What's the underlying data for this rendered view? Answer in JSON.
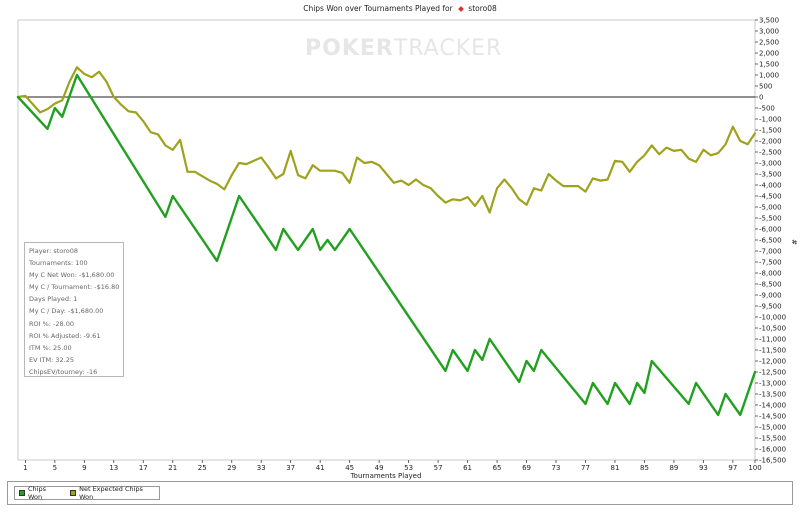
{
  "chart_data": {
    "type": "line",
    "title_prefix": "Chips Won over Tournaments Played for",
    "player_name": "storo08",
    "watermark_left": "POKER",
    "watermark_right": "TRACKER",
    "xlabel": "Tournaments Played",
    "ylabel": "#",
    "xlim": [
      0,
      100
    ],
    "ylim": [
      -16500,
      3500
    ],
    "x_ticks": [
      1,
      5,
      9,
      13,
      17,
      21,
      25,
      29,
      33,
      37,
      41,
      45,
      49,
      53,
      57,
      61,
      65,
      69,
      73,
      77,
      81,
      85,
      89,
      93,
      97,
      100
    ],
    "y_ticks": [
      3500,
      3000,
      2500,
      2000,
      1500,
      1000,
      500,
      0,
      -500,
      -1000,
      -1500,
      -2000,
      -2500,
      -3000,
      -3500,
      -4000,
      -4500,
      -5000,
      -5500,
      -6000,
      -6500,
      -7000,
      -7500,
      -8000,
      -8500,
      -9000,
      -9500,
      -10000,
      -10500,
      -11000,
      -11500,
      -12000,
      -12500,
      -13000,
      -13500,
      -14000,
      -14500,
      -15000,
      -15500,
      -16000,
      -16500
    ],
    "y_tick_labels": [
      "3,500",
      "3,000",
      "2,500",
      "2,000",
      "1,500",
      "1,000",
      "500",
      "0",
      "-500",
      "-1,000",
      "-1,500",
      "-2,000",
      "-2,500",
      "-3,000",
      "-3,500",
      "-4,000",
      "-4,500",
      "-5,000",
      "-5,500",
      "-6,000",
      "-6,500",
      "-7,000",
      "-7,500",
      "-8,000",
      "-8,500",
      "-9,000",
      "-9,500",
      "-10,000",
      "-10,500",
      "-11,000",
      "-11,500",
      "-12,000",
      "-12,500",
      "-13,000",
      "-13,500",
      "-14,000",
      "-14,500",
      "-15,000",
      "-15,500",
      "-16,000",
      "-16,500"
    ],
    "series": [
      {
        "name": "Chips Won",
        "color": "#22a020",
        "points": [
          [
            0,
            0
          ],
          [
            4,
            -1450
          ],
          [
            5,
            -500
          ],
          [
            6,
            -900
          ],
          [
            8,
            1000
          ],
          [
            20,
            -5450
          ],
          [
            21,
            -4500
          ],
          [
            27,
            -7450
          ],
          [
            30,
            -4500
          ],
          [
            35,
            -6950
          ],
          [
            36,
            -6000
          ],
          [
            38,
            -6950
          ],
          [
            40,
            -6000
          ],
          [
            41,
            -6950
          ],
          [
            42,
            -6500
          ],
          [
            43,
            -6950
          ],
          [
            45,
            -6000
          ],
          [
            58,
            -12450
          ],
          [
            59,
            -11500
          ],
          [
            61,
            -12450
          ],
          [
            62,
            -11500
          ],
          [
            63,
            -11950
          ],
          [
            64,
            -11000
          ],
          [
            68,
            -12950
          ],
          [
            69,
            -12000
          ],
          [
            70,
            -12450
          ],
          [
            71,
            -11500
          ],
          [
            77,
            -13950
          ],
          [
            78,
            -13000
          ],
          [
            80,
            -13950
          ],
          [
            81,
            -13000
          ],
          [
            83,
            -13950
          ],
          [
            84,
            -13000
          ],
          [
            85,
            -13450
          ],
          [
            86,
            -12000
          ],
          [
            91,
            -13950
          ],
          [
            92,
            -13000
          ],
          [
            95,
            -14450
          ],
          [
            96,
            -13500
          ],
          [
            98,
            -14450
          ],
          [
            100,
            -12500
          ]
        ]
      },
      {
        "name": "Net Expected Chips Won",
        "color": "#9ea21c",
        "points": [
          [
            0,
            0
          ],
          [
            1,
            50
          ],
          [
            3,
            -700
          ],
          [
            4,
            -550
          ],
          [
            5,
            -300
          ],
          [
            6,
            -150
          ],
          [
            7,
            700
          ],
          [
            8,
            1350
          ],
          [
            9,
            1050
          ],
          [
            10,
            900
          ],
          [
            11,
            1150
          ],
          [
            12,
            700
          ],
          [
            13,
            0
          ],
          [
            14,
            -350
          ],
          [
            15,
            -650
          ],
          [
            16,
            -700
          ],
          [
            17,
            -1100
          ],
          [
            18,
            -1600
          ],
          [
            19,
            -1700
          ],
          [
            20,
            -2200
          ],
          [
            21,
            -2400
          ],
          [
            22,
            -1950
          ],
          [
            23,
            -3400
          ],
          [
            24,
            -3400
          ],
          [
            25,
            -3600
          ],
          [
            26,
            -3800
          ],
          [
            27,
            -3950
          ],
          [
            28,
            -4200
          ],
          [
            29,
            -3550
          ],
          [
            30,
            -3000
          ],
          [
            31,
            -3050
          ],
          [
            32,
            -2900
          ],
          [
            33,
            -2750
          ],
          [
            34,
            -3200
          ],
          [
            35,
            -3700
          ],
          [
            36,
            -3500
          ],
          [
            37,
            -2450
          ],
          [
            38,
            -3550
          ],
          [
            39,
            -3700
          ],
          [
            40,
            -3100
          ],
          [
            41,
            -3350
          ],
          [
            42,
            -3350
          ],
          [
            43,
            -3350
          ],
          [
            44,
            -3450
          ],
          [
            45,
            -3900
          ],
          [
            46,
            -2750
          ],
          [
            47,
            -3000
          ],
          [
            48,
            -2950
          ],
          [
            49,
            -3100
          ],
          [
            50,
            -3500
          ],
          [
            51,
            -3900
          ],
          [
            52,
            -3800
          ],
          [
            53,
            -4000
          ],
          [
            54,
            -3750
          ],
          [
            55,
            -4000
          ],
          [
            56,
            -4150
          ],
          [
            57,
            -4500
          ],
          [
            58,
            -4800
          ],
          [
            59,
            -4650
          ],
          [
            60,
            -4700
          ],
          [
            61,
            -4550
          ],
          [
            62,
            -4950
          ],
          [
            63,
            -4500
          ],
          [
            64,
            -5250
          ],
          [
            65,
            -4150
          ],
          [
            66,
            -3750
          ],
          [
            67,
            -4150
          ],
          [
            68,
            -4650
          ],
          [
            69,
            -4900
          ],
          [
            70,
            -4150
          ],
          [
            71,
            -4250
          ],
          [
            72,
            -3500
          ],
          [
            73,
            -3800
          ],
          [
            74,
            -4050
          ],
          [
            75,
            -4050
          ],
          [
            76,
            -4050
          ],
          [
            77,
            -4300
          ],
          [
            78,
            -3700
          ],
          [
            79,
            -3800
          ],
          [
            80,
            -3750
          ],
          [
            81,
            -2900
          ],
          [
            82,
            -2950
          ],
          [
            83,
            -3400
          ],
          [
            84,
            -2950
          ],
          [
            85,
            -2650
          ],
          [
            86,
            -2200
          ],
          [
            87,
            -2600
          ],
          [
            88,
            -2300
          ],
          [
            89,
            -2450
          ],
          [
            90,
            -2400
          ],
          [
            91,
            -2800
          ],
          [
            92,
            -2950
          ],
          [
            93,
            -2400
          ],
          [
            94,
            -2650
          ],
          [
            95,
            -2550
          ],
          [
            96,
            -2150
          ],
          [
            97,
            -1350
          ],
          [
            98,
            -2000
          ],
          [
            99,
            -2150
          ],
          [
            100,
            -1650
          ]
        ]
      }
    ]
  },
  "stats": {
    "player": "Player: storo08",
    "tournaments": "Tournaments: 100",
    "net_won": "My C Net Won: -$1,680.00",
    "per_tournament": "My C / Tournament: -$16.80",
    "days_played": "Days Played: 1",
    "per_day": "My C / Day: -$1,680.00",
    "roi": "ROI %: -28.00",
    "roi_adjusted": "ROI % Adjusted: -9.61",
    "itm": "ITM %: 25.00",
    "ev_itm": "EV ITM: 32.25",
    "chipsev": "ChipsEV/tourney: -16"
  },
  "legend": {
    "chips_won": "Chips Won",
    "net_expected": "Net Expected Chips Won",
    "chips_won_color": "#22a020",
    "net_expected_color": "#9ea21c"
  }
}
